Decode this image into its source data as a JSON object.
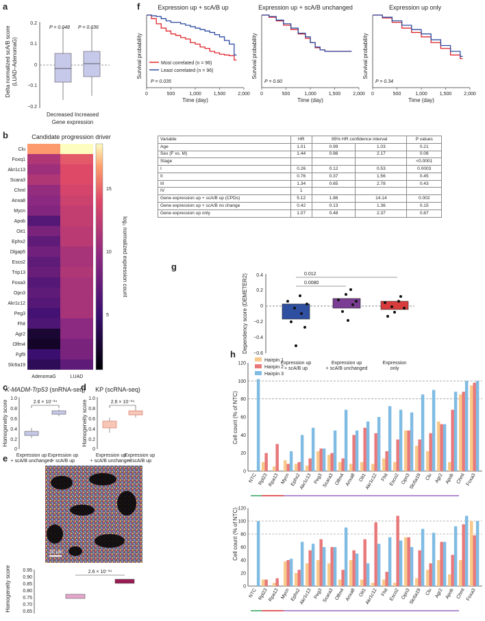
{
  "panel_labels": {
    "a": "a",
    "b": "b",
    "c": "c",
    "d": "d",
    "e": "e",
    "f": "f",
    "g": "g",
    "h": "h"
  },
  "panel_a": {
    "ylabel_line1": "Delta normalized scA/B score",
    "ylabel_line2": "(LUAD–AdenomaG)",
    "xlabel_line1": "Decreased Increased",
    "xlabel_line2": "Gene expression",
    "yticks": [
      "0.2",
      "0.1",
      "0",
      "−0.1",
      "−0.2"
    ],
    "p_left": "P = 0.048",
    "p_right": "P = 0.036"
  },
  "panel_b": {
    "title": "Candidate progression driver",
    "genes": [
      "Clu",
      "Foxq1",
      "Akr1c13",
      "Scara3",
      "Chml",
      "Anxa8",
      "Mycn",
      "Apob",
      "Oit1",
      "Ephx2",
      "Dlgap5",
      "Esco2",
      "Trip13",
      "Foxa3",
      "Opn3",
      "Akr1c12",
      "Peg3",
      "Fhit",
      "Agr2",
      "Olfm4",
      "Fgf9",
      "Slc6a19"
    ],
    "columns": [
      "AdenomaG",
      "LUAD"
    ],
    "colorbar_label": "log₂ normalized expression count",
    "colorbar_ticks": [
      "15",
      "10",
      "5"
    ]
  },
  "panel_c": {
    "title": "K-MADM-Trp53",
    "title_suffix": " (snRNA-seq)",
    "p": "2.6 × 10⁻³⁴",
    "ylabel": "Homogeneity score",
    "yticks": [
      "1.0",
      "0.8",
      "0.6",
      "0.4",
      "0.2",
      "0"
    ],
    "cat1_line1": "Expression up",
    "cat1_line2": "+ scA/B unchanged",
    "cat2_line1": "Expression up",
    "cat2_line2": "+ scA/B up"
  },
  "panel_d": {
    "title": "KP (scRNA-seq)",
    "p": "2.6 × 10⁻³⁴",
    "ylabel": "Homogeneity score",
    "yticks": [
      "1.0",
      "0.8",
      "0.6",
      "0.4",
      "0.2",
      "0"
    ],
    "cat1_line1": "Expression up",
    "cat1_line2": "+ scA/B unchanged",
    "cat2_line1": "Expression up",
    "cat2_line2": "+ scA/B up"
  },
  "panel_e": {
    "scale_bar": "20 µm",
    "p": "2.6 × 10⁻³⁴",
    "ylabel": "Homogeneity score",
    "yticks": [
      "0.95",
      "0.90",
      "0.85",
      "0.80",
      "0.75",
      "0.70",
      "0.65"
    ],
    "cat1_line1": "Expression up",
    "cat1_line2": "+ scA/B unchanged",
    "cat2_line1": "Expression up",
    "cat2_line2": "+ scA/B up"
  },
  "panel_f": {
    "titles": [
      "Expression up + scA/B up",
      "Expression up + scA/B unchanged",
      "Expression up only"
    ],
    "ylabel": "Survival probability",
    "xlabel": "Time (day)",
    "xticks": [
      "0",
      "500",
      "1,000",
      "1,500",
      "2,000"
    ],
    "p_values": [
      "P = 0.035",
      "P = 0.60",
      "P = 0.34"
    ],
    "legend_most": "Most correlated (n = 96)",
    "legend_least": "Least correlated (n = 96)",
    "colors": {
      "most": "#e0242b",
      "least": "#2b4aa0"
    }
  },
  "table": {
    "headers": [
      "Variable",
      "HR",
      "95% HR confidence interval",
      "",
      "P values"
    ],
    "rows": [
      [
        "Age",
        "1.01",
        "0.99",
        "1.03",
        "0.21"
      ],
      [
        "Sex (F vs. M)",
        "1.44",
        "0.86",
        "2.17",
        "0.08"
      ],
      [
        "Stage",
        "",
        "",
        "",
        "<0.0001"
      ],
      [
        "I",
        "0.26",
        "0.12",
        "0.53",
        "0.0003"
      ],
      [
        "II",
        "0.76",
        "0.37",
        "1.56",
        "0.45"
      ],
      [
        "III",
        "1.34",
        "0.65",
        "2.78",
        "0.43"
      ],
      [
        "IV",
        "1",
        "",
        "",
        ""
      ],
      [
        "Gene expression up + scA/B up (CPDs)",
        "5.12",
        "1.86",
        "14.14",
        "0.002"
      ],
      [
        "Gene expression up + scA/B no change",
        "0.42",
        "0.13",
        "1.36",
        "0.15"
      ],
      [
        "Gene expression up only",
        "1.07",
        "0.48",
        "2.37",
        "0.87"
      ]
    ]
  },
  "panel_g": {
    "ylabel": "Dependency score (DEMETER2)",
    "yticks": [
      "0.4",
      "0.2",
      "0",
      "−0.2",
      "−0.4",
      "−0.6"
    ],
    "p1": "0.012",
    "p2": "0.0080",
    "cat1_line1": "Expression up",
    "cat1_line2": "+ scA/B up",
    "cat2_line1": "Expression up",
    "cat2_line2": "+ scA/B unchanged",
    "cat3_line1": "Expression",
    "cat3_line2": "only"
  },
  "panel_h": {
    "legend": [
      "Hairpin 1",
      "Hairpin 2",
      "Hairpin 3"
    ],
    "colors": {
      "h1": "#f8c98a",
      "h2": "#e8787a",
      "h3": "#7fbbe3"
    },
    "ylabel": "Cell count (% of NTC)",
    "yticks": [
      "120",
      "100",
      "80",
      "60",
      "40",
      "20",
      "0"
    ],
    "top_genes": [
      "NTC",
      "Rpl23",
      "Rpa13",
      "Mycn",
      "Ephx2",
      "Akr1c13",
      "Peg3",
      "Scara3",
      "Olfm4",
      "Anxa8",
      "Oit1",
      "Akr1c12",
      "Fhit",
      "Esco2",
      "Opn3",
      "Slc6a19",
      "Clu",
      "Agr2",
      "Apob",
      "Chml",
      "Foxa3"
    ],
    "bottom_genes": [
      "NTC",
      "Rpl23",
      "Rpa13",
      "Mycn",
      "Ephx2",
      "Akr1c13",
      "Peg3",
      "Scara3",
      "Olfm4",
      "Anxa8",
      "Oit1",
      "Akr1c12",
      "Fhit",
      "Esco2",
      "Opn3",
      "Slc6a19",
      "Clu",
      "Agr2",
      "Apob",
      "Chml",
      "Foxa3"
    ]
  },
  "chart_data": [
    {
      "type": "heatmap",
      "rows": [
        "Clu",
        "Foxq1",
        "Akr1c13",
        "Scara3",
        "Chml",
        "Anxa8",
        "Mycn",
        "Apob",
        "Oit1",
        "Ephx2",
        "Dlgap5",
        "Esco2",
        "Trip13",
        "Foxa3",
        "Opn3",
        "Akr1c12",
        "Peg3",
        "Fhit",
        "Agr2",
        "Olfm4",
        "Fgf9",
        "Slc6a19"
      ],
      "columns": [
        "AdenomaG",
        "LUAD"
      ],
      "values": [
        [
          16,
          18
        ],
        [
          11,
          14
        ],
        [
          10,
          13.5
        ],
        [
          11,
          13.5
        ],
        [
          9.5,
          13
        ],
        [
          9,
          12.5
        ],
        [
          8.5,
          12
        ],
        [
          6,
          12
        ],
        [
          8,
          11.5
        ],
        [
          6.5,
          11.5
        ],
        [
          7.5,
          10.5
        ],
        [
          6.5,
          10.5
        ],
        [
          7,
          11
        ],
        [
          6,
          10.5
        ],
        [
          6.5,
          10.5
        ],
        [
          6,
          10.5
        ],
        [
          5,
          10.5
        ],
        [
          5.5,
          9
        ],
        [
          2,
          9
        ],
        [
          1.5,
          8
        ],
        [
          4.5,
          8
        ],
        [
          3.5,
          6.5
        ]
      ],
      "colorbar_range": [
        0,
        18
      ]
    },
    {
      "type": "line",
      "title": "Expression up + scA/B up",
      "x_ticks": [
        0,
        500,
        1000,
        1500,
        2000
      ],
      "ylim": [
        0,
        1
      ],
      "series": [
        {
          "name": "Most correlated (n = 96)",
          "x": [
            0,
            100,
            200,
            300,
            400,
            500,
            600,
            700,
            800,
            900,
            1000,
            1100,
            1200,
            1300,
            1400,
            1500,
            1600,
            1700,
            1800,
            1850
          ],
          "y": [
            1,
            0.95,
            0.88,
            0.82,
            0.78,
            0.74,
            0.72,
            0.69,
            0.67,
            0.62,
            0.6,
            0.56,
            0.54,
            0.5,
            0.48,
            0.46,
            0.45,
            0.44,
            0.38,
            0.38
          ]
        },
        {
          "name": "Least correlated (n = 96)",
          "x": [
            0,
            100,
            200,
            300,
            400,
            500,
            600,
            700,
            800,
            900,
            1000,
            1100,
            1200,
            1300,
            1400,
            1500,
            1600,
            1700,
            1800,
            1850
          ],
          "y": [
            1,
            0.99,
            0.98,
            0.95,
            0.92,
            0.9,
            0.9,
            0.88,
            0.86,
            0.84,
            0.82,
            0.8,
            0.78,
            0.76,
            0.73,
            0.7,
            0.65,
            0.6,
            0.45,
            0.45
          ]
        }
      ]
    },
    {
      "type": "line",
      "title": "Expression up + scA/B unchanged",
      "x_ticks": [
        0,
        500,
        1000,
        1500,
        2000
      ],
      "ylim": [
        0,
        1
      ],
      "series": [
        {
          "name": "Most correlated (n = 96)",
          "x": [
            0,
            150,
            300,
            450,
            600,
            750,
            900,
            1000,
            1100,
            1200,
            1300,
            1500,
            1700,
            1850
          ],
          "y": [
            1,
            0.97,
            0.92,
            0.86,
            0.8,
            0.74,
            0.68,
            0.62,
            0.55,
            0.52,
            0.5,
            0.5,
            0.5,
            0.5
          ]
        },
        {
          "name": "Least correlated (n = 96)",
          "x": [
            0,
            150,
            300,
            450,
            600,
            750,
            900,
            1000,
            1100,
            1200,
            1300,
            1500,
            1700,
            1850
          ],
          "y": [
            1,
            0.98,
            0.93,
            0.88,
            0.82,
            0.75,
            0.7,
            0.62,
            0.56,
            0.52,
            0.5,
            0.5,
            0.5,
            0.5
          ]
        }
      ]
    },
    {
      "type": "line",
      "title": "Expression up only",
      "x_ticks": [
        0,
        500,
        1000,
        1500,
        2000
      ],
      "ylim": [
        0,
        1
      ],
      "series": [
        {
          "name": "Most correlated (n = 96)",
          "x": [
            0,
            200,
            400,
            600,
            800,
            1000,
            1200,
            1400,
            1600,
            1800,
            1850
          ],
          "y": [
            1,
            0.96,
            0.9,
            0.82,
            0.76,
            0.7,
            0.62,
            0.54,
            0.45,
            0.4,
            0.4
          ]
        },
        {
          "name": "Least correlated (n = 96)",
          "x": [
            0,
            200,
            400,
            600,
            800,
            1000,
            1200,
            1400,
            1600,
            1800,
            1850
          ],
          "y": [
            1,
            0.97,
            0.92,
            0.86,
            0.8,
            0.74,
            0.66,
            0.58,
            0.5,
            0.43,
            0.43
          ]
        }
      ]
    },
    {
      "type": "bar",
      "title": "Hairpin knockdown (top)",
      "categories": [
        "NTC",
        "Rpl23",
        "Rpa13",
        "Mycn",
        "Ephx2",
        "Akr1c13",
        "Peg3",
        "Scara3",
        "Olfm4",
        "Anxa8",
        "Oit1",
        "Akr1c12",
        "Fhit",
        "Esco2",
        "Opn3",
        "Slc6a19",
        "Clu",
        "Agr2",
        "Apob",
        "Chml",
        "Foxa3"
      ],
      "series": [
        {
          "name": "Hairpin 1",
          "values": [
            0,
            10,
            5,
            12,
            8,
            6,
            22,
            18,
            10,
            8,
            10,
            8,
            14,
            10,
            45,
            28,
            22,
            55,
            10,
            85,
            95
          ]
        },
        {
          "name": "Hairpin 2",
          "values": [
            0,
            20,
            30,
            8,
            10,
            14,
            25,
            20,
            14,
            40,
            48,
            42,
            22,
            35,
            45,
            35,
            42,
            52,
            68,
            88,
            98
          ]
        },
        {
          "name": "Hairpin 3",
          "values": [
            102,
            0,
            0,
            22,
            40,
            48,
            25,
            45,
            68,
            45,
            55,
            60,
            72,
            68,
            65,
            85,
            90,
            52,
            88,
            100,
            100
          ]
        }
      ]
    },
    {
      "type": "bar",
      "title": "Hairpin knockdown (bottom)",
      "categories": [
        "NTC",
        "Rpl23",
        "Rpa13",
        "Mycn",
        "Ephx2",
        "Akr1c13",
        "Peg3",
        "Scara3",
        "Olfm4",
        "Anxa8",
        "Oit1",
        "Akr1c12",
        "Fhit",
        "Esco2",
        "Opn3",
        "Slc6a19",
        "Clu",
        "Agr2",
        "Apob",
        "Chml",
        "Foxa3"
      ],
      "series": [
        {
          "name": "Hairpin 1",
          "values": [
            0,
            10,
            5,
            38,
            20,
            35,
            40,
            35,
            10,
            40,
            10,
            5,
            10,
            5,
            75,
            12,
            25,
            40,
            18,
            40,
            100
          ]
        },
        {
          "name": "Hairpin 2",
          "values": [
            0,
            10,
            12,
            40,
            25,
            55,
            72,
            60,
            25,
            55,
            72,
            98,
            22,
            108,
            75,
            55,
            35,
            68,
            48,
            95,
            78
          ]
        },
        {
          "name": "Hairpin 3",
          "values": [
            100,
            0,
            0,
            42,
            68,
            65,
            60,
            60,
            90,
            50,
            35,
            65,
            75,
            70,
            60,
            88,
            82,
            68,
            92,
            108,
            100
          ]
        }
      ]
    }
  ]
}
